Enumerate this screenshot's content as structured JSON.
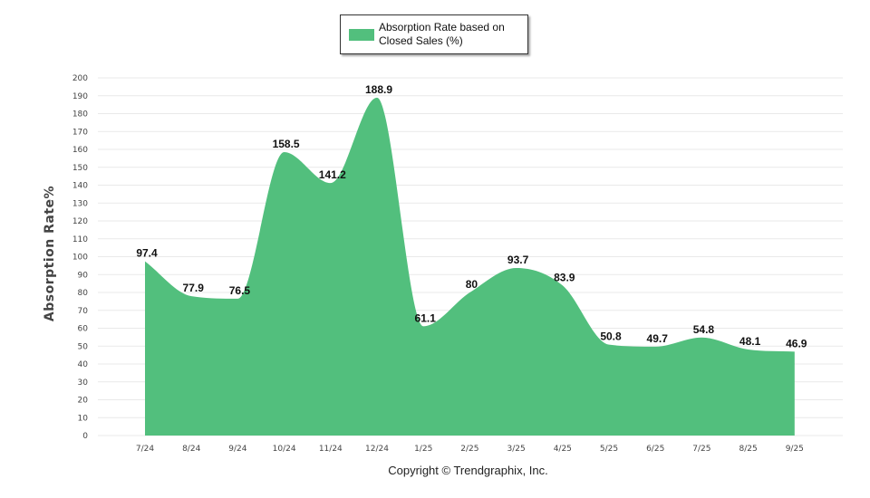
{
  "chart_data": {
    "type": "area",
    "categories": [
      "7/24",
      "8/24",
      "9/24",
      "10/24",
      "11/24",
      "12/24",
      "1/25",
      "2/25",
      "3/25",
      "4/25",
      "5/25",
      "6/25",
      "7/25",
      "8/25",
      "9/25"
    ],
    "series": [
      {
        "name": "Absorption Rate based on Closed Sales (%)",
        "values": [
          97.4,
          77.9,
          76.5,
          158.5,
          141.2,
          188.9,
          61.1,
          80,
          93.7,
          83.9,
          50.8,
          49.7,
          54.8,
          48.1,
          46.9
        ],
        "color": "#52bf7d"
      }
    ],
    "title": "",
    "xlabel": "",
    "ylabel": "Absorption Rate%",
    "ylim": [
      0,
      200
    ],
    "ytick_step": 10,
    "grid": true,
    "legend": "top-center",
    "data_labels": [
      "97.4",
      "77.9",
      "76.5",
      "158.5",
      "141.2",
      "188.9",
      "61.1",
      "80",
      "93.7",
      "83.9",
      "50.8",
      "49.7",
      "54.8",
      "48.1",
      "46.9"
    ]
  },
  "legend": {
    "line1": "Absorption Rate based on",
    "line2": "Closed Sales (%)"
  },
  "footer": {
    "copyright": "Copyright © Trendgraphix, Inc."
  }
}
